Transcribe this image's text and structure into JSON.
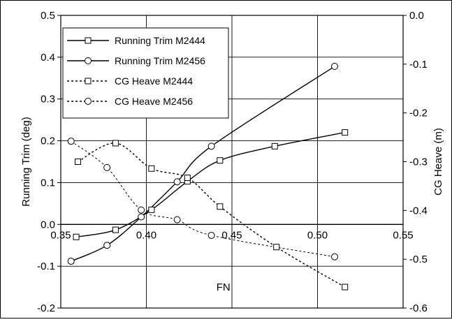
{
  "chart_data": {
    "type": "line",
    "xlabel": "FN",
    "ylabel": "Running Trim (deg)",
    "y2label": "CG Heave (m)",
    "xlim": [
      0.35,
      0.55
    ],
    "ylim": [
      -0.2,
      0.5
    ],
    "y2lim": [
      -0.6,
      0.0
    ],
    "xticks": [
      "0.35",
      "0.40",
      "0.45",
      "0.50",
      "0.55"
    ],
    "yticks": [
      "-0.2",
      "-0.1",
      "0.0",
      "0.1",
      "0.2",
      "0.3",
      "0.4",
      "0.5"
    ],
    "y2ticks": [
      "-0.6",
      "-0.5",
      "-0.4",
      "-0.3",
      "-0.2",
      "-0.1",
      "0.0"
    ],
    "grid": true,
    "legend_position": "top-left",
    "series": [
      {
        "name": "Running Trim M2444",
        "axis": "left",
        "marker": "square",
        "line": "solid",
        "x": [
          0.359,
          0.382,
          0.403,
          0.424,
          0.443,
          0.475,
          0.516
        ],
        "y": [
          -0.03,
          -0.013,
          0.035,
          0.103,
          0.153,
          0.187,
          0.22
        ]
      },
      {
        "name": "Running Trim M2456",
        "axis": "left",
        "marker": "circle",
        "line": "solid",
        "x": [
          0.356,
          0.377,
          0.397,
          0.418,
          0.438,
          0.51
        ],
        "y": [
          -0.088,
          -0.05,
          0.018,
          0.102,
          0.187,
          0.378
        ]
      },
      {
        "name": "CG Heave M2444",
        "axis": "right",
        "marker": "square",
        "line": "dashed",
        "x": [
          0.36,
          0.382,
          0.403,
          0.424,
          0.443,
          0.476,
          0.516
        ],
        "y": [
          -0.3,
          -0.262,
          -0.314,
          -0.333,
          -0.392,
          -0.475,
          -0.557
        ]
      },
      {
        "name": "CG Heave M2456",
        "axis": "right",
        "marker": "circle",
        "line": "dashed",
        "x": [
          0.356,
          0.377,
          0.397,
          0.418,
          0.438,
          0.51
        ],
        "y": [
          -0.258,
          -0.312,
          -0.399,
          -0.419,
          -0.451,
          -0.495
        ]
      }
    ]
  }
}
